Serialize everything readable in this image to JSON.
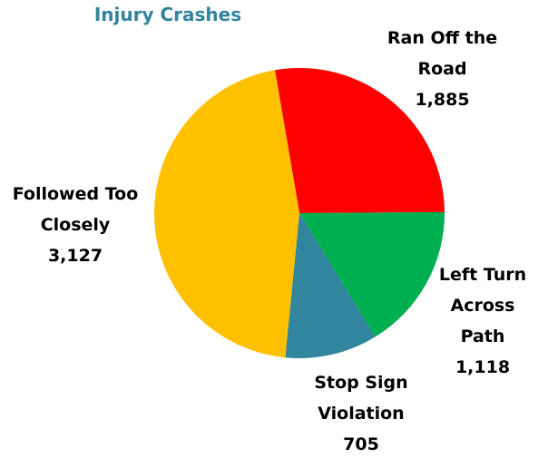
{
  "chart_data": {
    "type": "pie",
    "title": "Injury Crashes",
    "categories": [
      "Ran Off the Road",
      "Left Turn Across Path",
      "Stop Sign Violation",
      "Followed Too Closely"
    ],
    "values": [
      1885,
      1118,
      705,
      3127
    ],
    "value_labels": [
      "1,885",
      "1,118",
      "705",
      "3,127"
    ],
    "colors": [
      "#ff0000",
      "#00b050",
      "#31859c",
      "#ffc000"
    ]
  }
}
